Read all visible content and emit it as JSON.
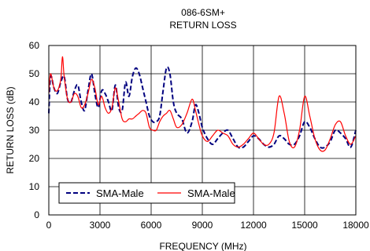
{
  "chart_data": {
    "type": "line",
    "title": "086-6SM+",
    "subtitle": "RETURN LOSS",
    "xlabel": "FREQUENCY (MHz)",
    "ylabel": "RETURN LOSS (dB)",
    "xlim": [
      0,
      18000
    ],
    "ylim": [
      0,
      60
    ],
    "xticks": [
      0,
      3000,
      6000,
      9000,
      12000,
      15000,
      18000
    ],
    "yticks": [
      0,
      10,
      20,
      30,
      40,
      50,
      60
    ],
    "x_tick_labels": [
      "0",
      "3000",
      "6000",
      "9000",
      "12000",
      "15000",
      "18000"
    ],
    "y_tick_labels": [
      "0",
      "10",
      "20",
      "30",
      "40",
      "50",
      "60"
    ],
    "grid": true,
    "legend_position": "bottom-left",
    "series": [
      {
        "name": "SMA-Male",
        "color": "#00007f",
        "style": "dashed",
        "points": [
          [
            0,
            36
          ],
          [
            100,
            49
          ],
          [
            300,
            45
          ],
          [
            500,
            43
          ],
          [
            700,
            47
          ],
          [
            900,
            49
          ],
          [
            1100,
            41
          ],
          [
            1300,
            40
          ],
          [
            1500,
            44
          ],
          [
            1700,
            46
          ],
          [
            1900,
            40
          ],
          [
            2100,
            37
          ],
          [
            2300,
            44
          ],
          [
            2500,
            50
          ],
          [
            2700,
            43
          ],
          [
            2900,
            38
          ],
          [
            3100,
            44
          ],
          [
            3300,
            43
          ],
          [
            3500,
            40
          ],
          [
            3700,
            37
          ],
          [
            3900,
            46
          ],
          [
            4100,
            38
          ],
          [
            4300,
            37
          ],
          [
            4500,
            47
          ],
          [
            4700,
            42
          ],
          [
            4900,
            49
          ],
          [
            5100,
            52
          ],
          [
            5300,
            50
          ],
          [
            5500,
            45
          ],
          [
            5700,
            40
          ],
          [
            5900,
            35
          ],
          [
            6100,
            33
          ],
          [
            6300,
            33
          ],
          [
            6500,
            35
          ],
          [
            6700,
            44
          ],
          [
            6900,
            52
          ],
          [
            7100,
            50
          ],
          [
            7300,
            40
          ],
          [
            7500,
            36
          ],
          [
            7800,
            34
          ],
          [
            8100,
            29
          ],
          [
            8400,
            33
          ],
          [
            8600,
            39
          ],
          [
            8800,
            36
          ],
          [
            9000,
            31
          ],
          [
            9300,
            27
          ],
          [
            9600,
            25
          ],
          [
            9900,
            27
          ],
          [
            10200,
            29
          ],
          [
            10500,
            30
          ],
          [
            10800,
            27
          ],
          [
            11100,
            24
          ],
          [
            11400,
            24
          ],
          [
            11700,
            26
          ],
          [
            12000,
            28
          ],
          [
            12300,
            27
          ],
          [
            12600,
            25
          ],
          [
            12900,
            24
          ],
          [
            13200,
            25
          ],
          [
            13500,
            28
          ],
          [
            13800,
            27
          ],
          [
            14100,
            25
          ],
          [
            14400,
            25
          ],
          [
            14700,
            28
          ],
          [
            15000,
            33
          ],
          [
            15300,
            31
          ],
          [
            15600,
            27
          ],
          [
            15900,
            24
          ],
          [
            16200,
            24
          ],
          [
            16500,
            26
          ],
          [
            16800,
            30
          ],
          [
            17100,
            29
          ],
          [
            17400,
            27
          ],
          [
            17700,
            24
          ],
          [
            18000,
            30
          ]
        ]
      },
      {
        "name": "SMA-Male",
        "color": "#ff0000",
        "style": "solid",
        "points": [
          [
            0,
            43
          ],
          [
            100,
            50
          ],
          [
            300,
            45
          ],
          [
            500,
            44
          ],
          [
            700,
            48
          ],
          [
            800,
            56
          ],
          [
            900,
            49
          ],
          [
            1100,
            41
          ],
          [
            1300,
            40
          ],
          [
            1500,
            43
          ],
          [
            1700,
            42
          ],
          [
            1900,
            38
          ],
          [
            2100,
            39
          ],
          [
            2300,
            43
          ],
          [
            2500,
            48
          ],
          [
            2700,
            45
          ],
          [
            2900,
            39
          ],
          [
            3100,
            42
          ],
          [
            3300,
            38
          ],
          [
            3500,
            36
          ],
          [
            3700,
            38
          ],
          [
            3900,
            45
          ],
          [
            4100,
            40
          ],
          [
            4300,
            34
          ],
          [
            4500,
            33
          ],
          [
            4700,
            34
          ],
          [
            4900,
            34
          ],
          [
            5100,
            35
          ],
          [
            5300,
            36
          ],
          [
            5500,
            37
          ],
          [
            5700,
            36
          ],
          [
            5900,
            31
          ],
          [
            6100,
            30
          ],
          [
            6300,
            30
          ],
          [
            6500,
            33
          ],
          [
            6700,
            35
          ],
          [
            6900,
            36
          ],
          [
            7100,
            37
          ],
          [
            7300,
            34
          ],
          [
            7500,
            31
          ],
          [
            7800,
            32
          ],
          [
            8100,
            36
          ],
          [
            8400,
            41
          ],
          [
            8600,
            37
          ],
          [
            8800,
            32
          ],
          [
            9000,
            28
          ],
          [
            9300,
            26
          ],
          [
            9600,
            28
          ],
          [
            9900,
            30
          ],
          [
            10200,
            29
          ],
          [
            10500,
            28
          ],
          [
            10800,
            25
          ],
          [
            11100,
            24
          ],
          [
            11400,
            25
          ],
          [
            11700,
            27
          ],
          [
            12000,
            29
          ],
          [
            12300,
            27
          ],
          [
            12600,
            25
          ],
          [
            12900,
            25
          ],
          [
            13200,
            29
          ],
          [
            13500,
            42
          ],
          [
            13800,
            36
          ],
          [
            14100,
            26
          ],
          [
            14400,
            24
          ],
          [
            14700,
            30
          ],
          [
            15000,
            42
          ],
          [
            15300,
            35
          ],
          [
            15600,
            27
          ],
          [
            15900,
            23
          ],
          [
            16200,
            23
          ],
          [
            16500,
            27
          ],
          [
            16800,
            32
          ],
          [
            17100,
            33
          ],
          [
            17400,
            28
          ],
          [
            17700,
            25
          ],
          [
            18000,
            28
          ]
        ]
      }
    ]
  }
}
